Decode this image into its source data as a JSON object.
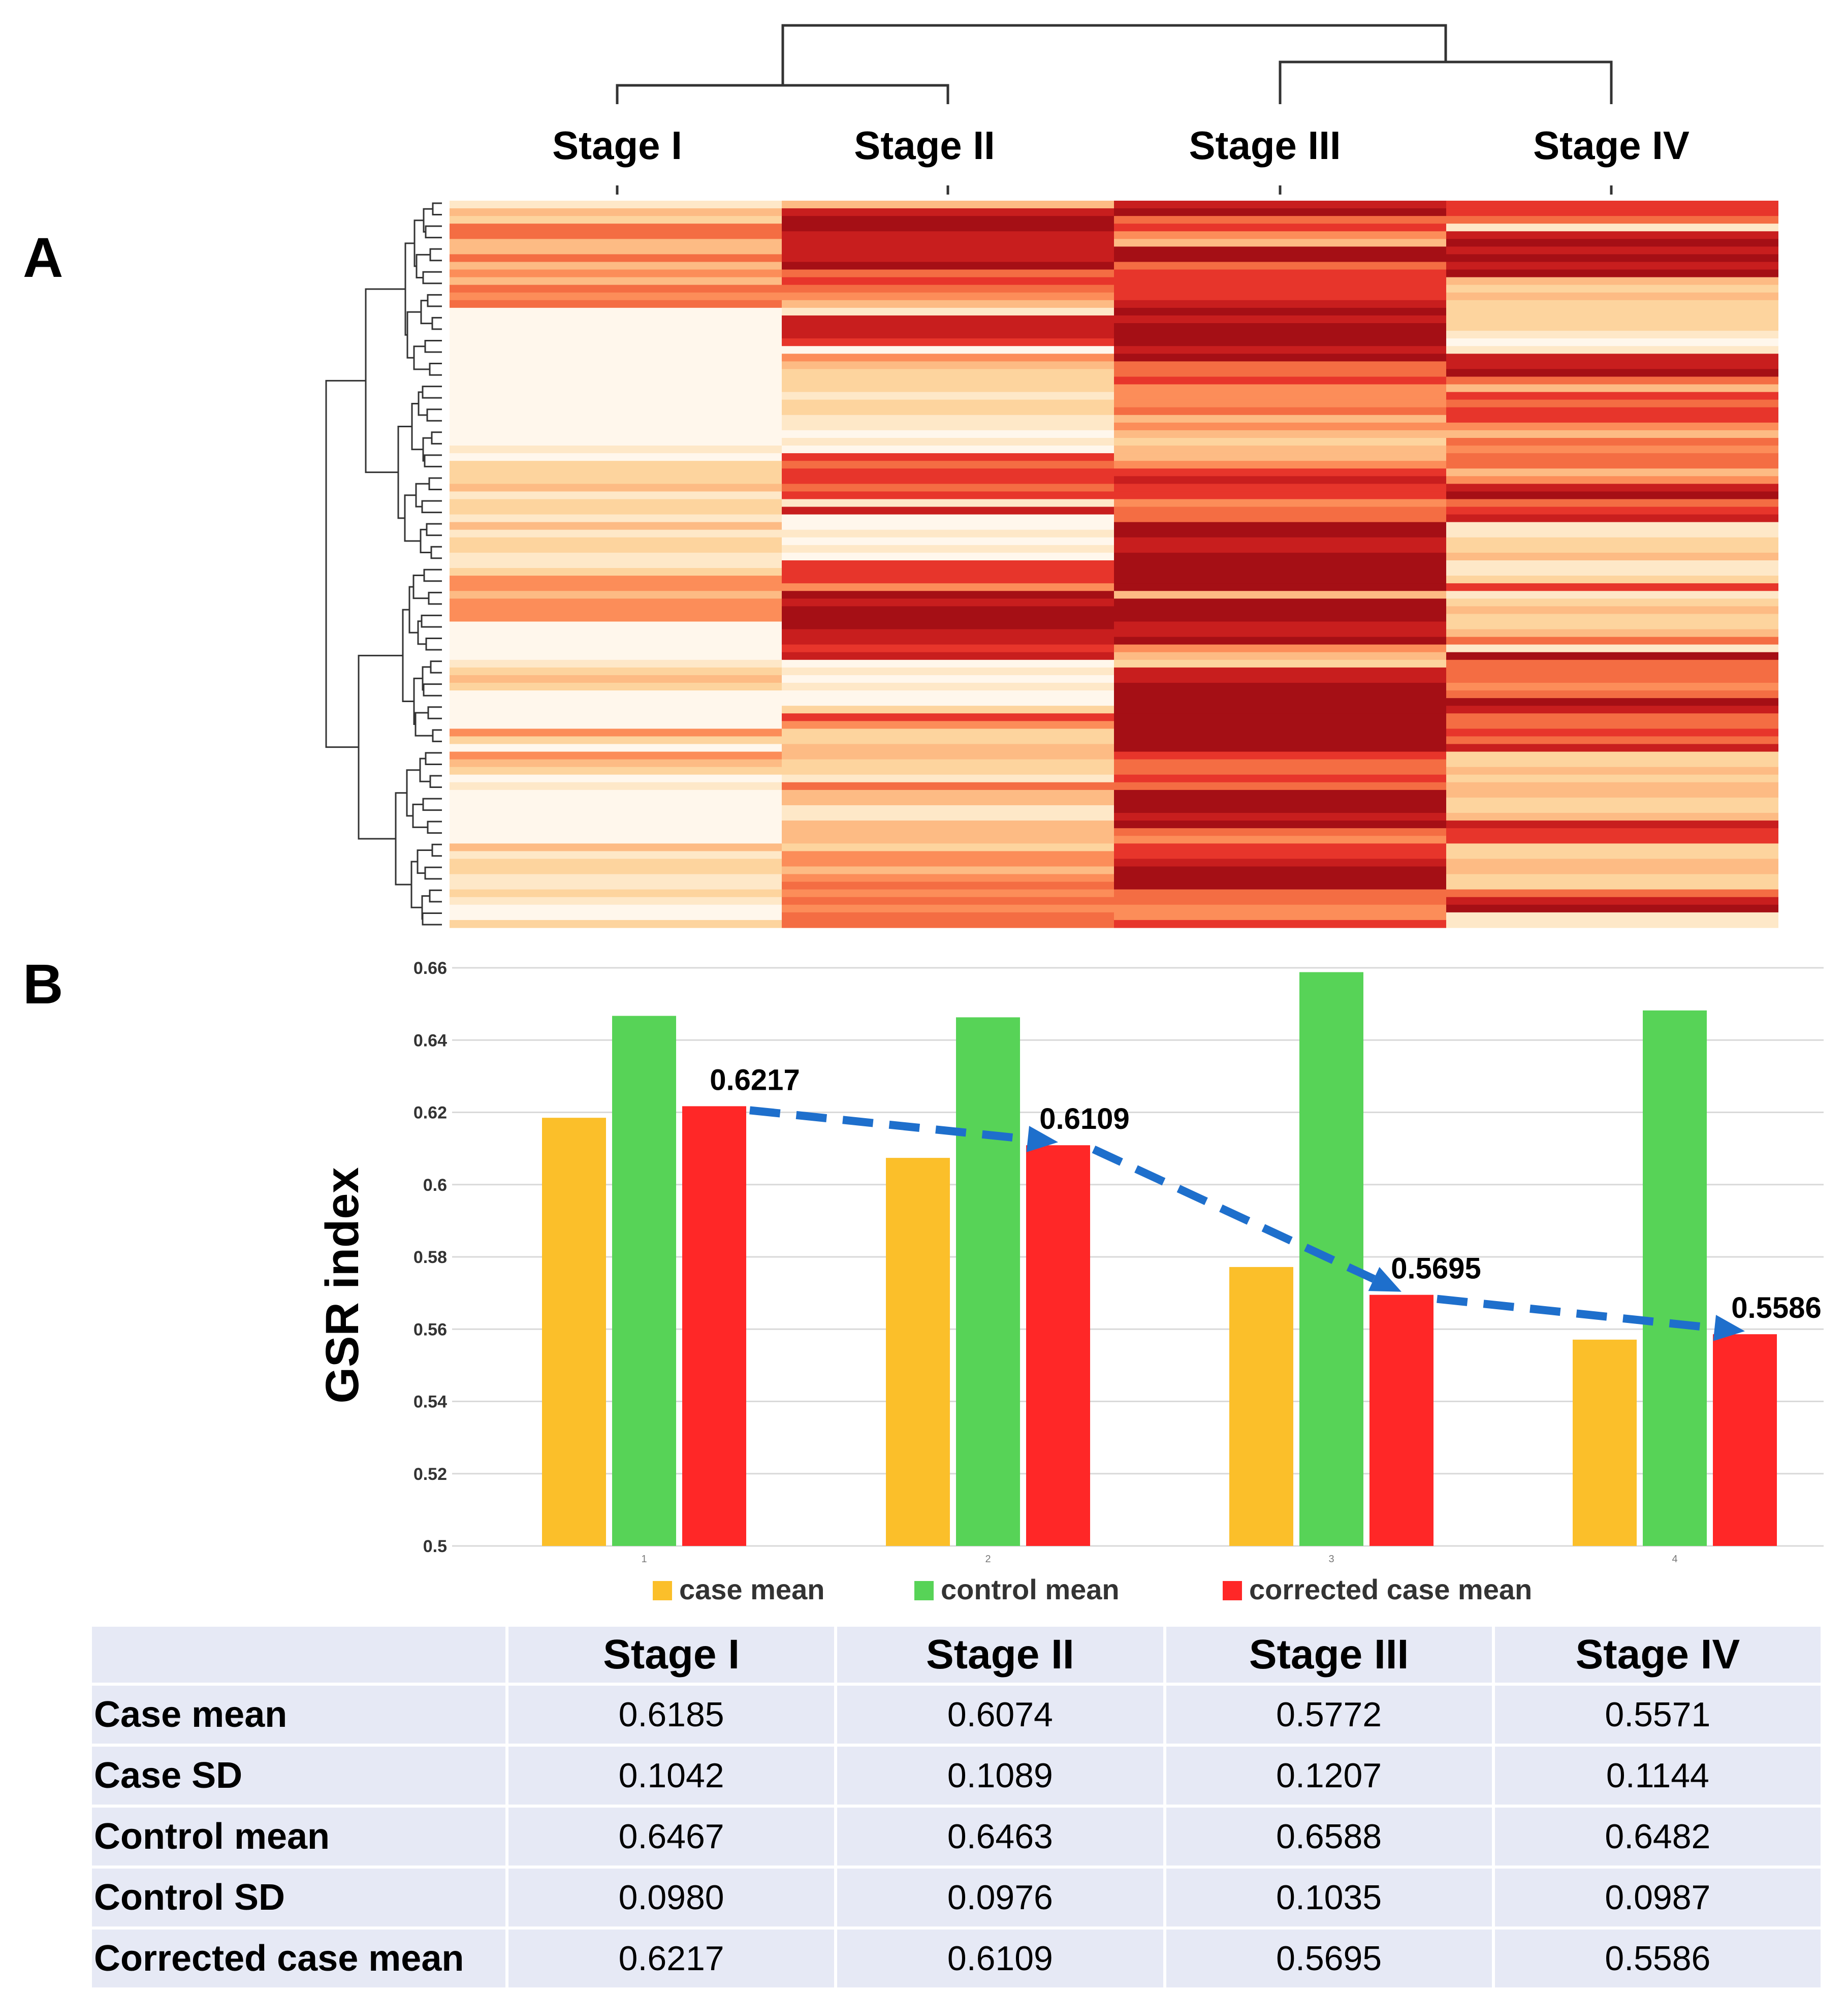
{
  "panel_labels": {
    "a": "A",
    "b": "B"
  },
  "colors": {
    "heat_scale": [
      "#fff7ec",
      "#fee8c8",
      "#fdd49e",
      "#fdbb84",
      "#fc8d59",
      "#f46d43",
      "#e7352b",
      "#c81e1e",
      "#a50f15"
    ],
    "case_mean": "#fbbf2a",
    "control_mean": "#57d357",
    "corrected_case_mean": "#ff2727",
    "trend_arrow": "#1e6fcc",
    "table_bg": "#e6e9f5"
  },
  "heatmap": {
    "columns": [
      "Stage I",
      "Stage II",
      "Stage III",
      "Stage IV"
    ]
  },
  "chart_data": {
    "type": "bar",
    "title": "",
    "ylabel": "GSR index",
    "xlabel": "",
    "categories": [
      "1",
      "2",
      "3",
      "4"
    ],
    "ylim": [
      0.5,
      0.66
    ],
    "yticks": [
      0.5,
      0.52,
      0.54,
      0.56,
      0.58,
      0.6,
      0.62,
      0.64,
      0.66
    ],
    "ytick_labels": [
      "0.5",
      "0.52",
      "0.54",
      "0.56",
      "0.58",
      "0.6",
      "0.62",
      "0.64",
      "0.66"
    ],
    "grid": true,
    "legend_position": "bottom",
    "series": [
      {
        "name": "case mean",
        "key": "case_mean",
        "values": [
          0.6185,
          0.6074,
          0.5772,
          0.5571
        ]
      },
      {
        "name": "control mean",
        "key": "control_mean",
        "values": [
          0.6467,
          0.6463,
          0.6588,
          0.6482
        ]
      },
      {
        "name": "corrected case mean",
        "key": "corrected_case_mean",
        "values": [
          0.6217,
          0.6109,
          0.5695,
          0.5586
        ]
      }
    ],
    "annotations": [
      "0.6217",
      "0.6109",
      "0.5695",
      "0.5586"
    ]
  },
  "table": {
    "columns": [
      "Stage I",
      "Stage II",
      "Stage III",
      "Stage IV"
    ],
    "rows": [
      {
        "label": "Case mean",
        "values": [
          "0.6185",
          "0.6074",
          "0.5772",
          "0.5571"
        ]
      },
      {
        "label": "Case SD",
        "values": [
          "0.1042",
          "0.1089",
          "0.1207",
          "0.1144"
        ]
      },
      {
        "label": "Control mean",
        "values": [
          "0.6467",
          "0.6463",
          "0.6588",
          "0.6482"
        ]
      },
      {
        "label": "Control SD",
        "values": [
          "0.0980",
          "0.0976",
          "0.1035",
          "0.0987"
        ]
      },
      {
        "label": "Corrected case mean",
        "values": [
          "0.6217",
          "0.6109",
          "0.5695",
          "0.5586"
        ]
      }
    ]
  }
}
